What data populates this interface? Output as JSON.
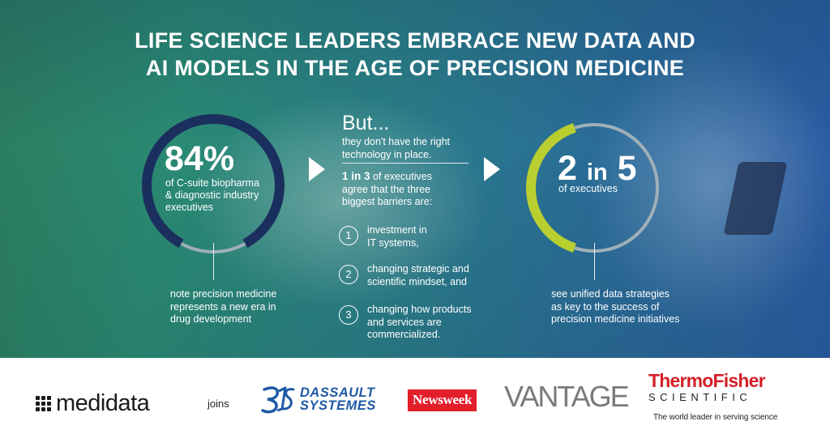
{
  "title": {
    "line1": "LIFE SCIENCE LEADERS EMBRACE NEW DATA AND",
    "line2": "AI MODELS IN THE AGE OF PRECISION MEDICINE"
  },
  "left_stat": {
    "value": "84%",
    "desc_line1": "of C-suite biopharma",
    "desc_line2": "& diagnostic industry",
    "desc_line3": "executives",
    "note": "note precision medicine represents a new era in drug development",
    "ring_fraction": 0.84
  },
  "middle": {
    "heading": "But...",
    "sub_line1": "they don't have the right",
    "sub_line2": "technology in place.",
    "stat_bold": "1 in 3",
    "stat_rest_line1": " of executives",
    "stat_line2": "agree that the three",
    "stat_line3": "biggest barriers are:",
    "barriers": [
      {
        "num": "1",
        "line1": "investment in",
        "line2": "IT systems,"
      },
      {
        "num": "2",
        "line1": "changing strategic and",
        "line2": "scientific mindset, and"
      },
      {
        "num": "3",
        "line1": "changing how products",
        "line2": "and services are",
        "line3": "commercialized."
      }
    ]
  },
  "right_stat": {
    "value_a": "2",
    "value_in": "in",
    "value_b": "5",
    "desc": "of executives",
    "note": "see unified data strategies as key to the success of precision medicine initiatives",
    "ring_fraction": 0.4
  },
  "footer": {
    "medidata": "medidata",
    "joins": "joins",
    "dassault_line1": "DASSAULT",
    "dassault_line2": "SYSTEMES",
    "newsweek": "Newsweek",
    "vantage": "VANTAGE",
    "thermo_fisher": "ThermoFisher",
    "scientific": "SCIENTIFIC",
    "tagline": "The world leader in serving science"
  },
  "colors": {
    "ring_navy": "#1b2f5e",
    "ring_lime": "#b9cf2f",
    "ring_gray": "#9fb0b8",
    "dassault_blue": "#1f5aa6",
    "newsweek_red": "#e21f2a",
    "thermo_red": "#d42027"
  }
}
